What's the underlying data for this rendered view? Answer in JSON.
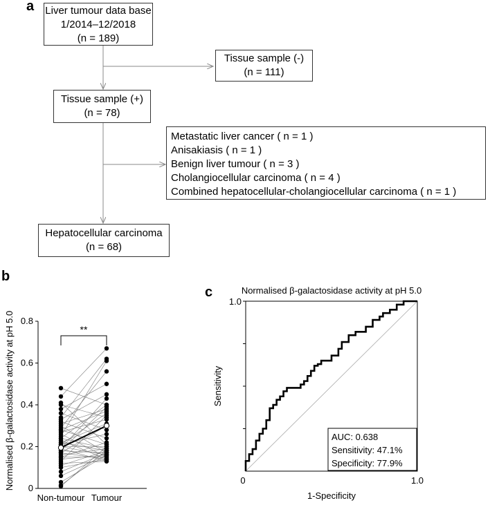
{
  "panel_a": {
    "letter": "a",
    "database_box": [
      "Liver tumour data base",
      "1/2014–12/2018",
      "(n = 189)"
    ],
    "tissue_negative_box": [
      "Tissue sample (-)",
      "(n = 111)"
    ],
    "tissue_positive_box": [
      "Tissue sample (+)",
      "(n = 78)"
    ],
    "excluded_box": [
      "Metastatic liver cancer ( n = 1 )",
      "Anisakiasis ( n = 1 )",
      "Benign liver tumour ( n = 3 )",
      "Cholangiocellular carcinoma ( n = 4 )",
      "Combined hepatocellular-cholangiocellular carcinoma ( n = 1 )"
    ],
    "hcc_box": [
      "Hepatocellular carcinoma",
      "(n = 68)"
    ],
    "colors": {
      "box_border": "#333333",
      "arrow": "#888888"
    }
  },
  "panel_b": {
    "letter": "b",
    "significance": "**",
    "chart_data": {
      "type": "paired-dot",
      "title": "",
      "xlabel": "",
      "ylabel": "Normalised β-galactosidase activity at pH 5.0",
      "categories": [
        "Non-tumour",
        "Tumour"
      ],
      "ylim": [
        0,
        0.8
      ],
      "yticks": [
        "0",
        "0.2",
        "0.4",
        "0.6",
        "0.8"
      ],
      "mean": [
        0.195,
        0.3
      ],
      "pairs": [
        [
          0.01,
          0.2
        ],
        [
          0.015,
          0.18
        ],
        [
          0.03,
          0.16
        ],
        [
          0.06,
          0.16
        ],
        [
          0.08,
          0.17
        ],
        [
          0.1,
          0.14
        ],
        [
          0.11,
          0.18
        ],
        [
          0.12,
          0.13
        ],
        [
          0.13,
          0.35
        ],
        [
          0.14,
          0.16
        ],
        [
          0.15,
          0.22
        ],
        [
          0.15,
          0.15
        ],
        [
          0.16,
          0.19
        ],
        [
          0.17,
          0.14
        ],
        [
          0.17,
          0.3
        ],
        [
          0.18,
          0.39
        ],
        [
          0.18,
          0.17
        ],
        [
          0.19,
          0.13
        ],
        [
          0.19,
          0.43
        ],
        [
          0.2,
          0.2
        ],
        [
          0.2,
          0.16
        ],
        [
          0.21,
          0.36
        ],
        [
          0.21,
          0.26
        ],
        [
          0.22,
          0.18
        ],
        [
          0.22,
          0.31
        ],
        [
          0.23,
          0.14
        ],
        [
          0.24,
          0.4
        ],
        [
          0.24,
          0.19
        ],
        [
          0.25,
          0.61
        ],
        [
          0.26,
          0.15
        ],
        [
          0.27,
          0.33
        ],
        [
          0.28,
          0.37
        ],
        [
          0.28,
          0.21
        ],
        [
          0.29,
          0.56
        ],
        [
          0.3,
          0.17
        ],
        [
          0.31,
          0.38
        ],
        [
          0.32,
          0.24
        ],
        [
          0.33,
          0.45
        ],
        [
          0.34,
          0.62
        ],
        [
          0.36,
          0.28
        ],
        [
          0.38,
          0.5
        ],
        [
          0.4,
          0.34
        ],
        [
          0.41,
          0.21
        ],
        [
          0.44,
          0.67
        ],
        [
          0.48,
          0.4
        ]
      ]
    }
  },
  "panel_c": {
    "letter": "c",
    "chart_data": {
      "type": "line",
      "title": "Normalised β-galactosidase activity at pH 5.0",
      "xlabel": "1-Specificity",
      "ylabel": "Sensitivity",
      "xlim": [
        0,
        1
      ],
      "ylim": [
        0,
        1
      ],
      "xticks": [
        "0",
        "1.0"
      ],
      "yticks": [
        "1.0"
      ],
      "diagonal_reference": true,
      "roc_points": [
        [
          0,
          0
        ],
        [
          0,
          0.06
        ],
        [
          0.02,
          0.06
        ],
        [
          0.02,
          0.1
        ],
        [
          0.04,
          0.1
        ],
        [
          0.04,
          0.13
        ],
        [
          0.06,
          0.13
        ],
        [
          0.06,
          0.18
        ],
        [
          0.08,
          0.18
        ],
        [
          0.08,
          0.22
        ],
        [
          0.1,
          0.22
        ],
        [
          0.1,
          0.25
        ],
        [
          0.12,
          0.25
        ],
        [
          0.12,
          0.3
        ],
        [
          0.14,
          0.3
        ],
        [
          0.14,
          0.37
        ],
        [
          0.16,
          0.37
        ],
        [
          0.16,
          0.39
        ],
        [
          0.18,
          0.39
        ],
        [
          0.18,
          0.42
        ],
        [
          0.2,
          0.42
        ],
        [
          0.2,
          0.44
        ],
        [
          0.22,
          0.44
        ],
        [
          0.22,
          0.47
        ],
        [
          0.24,
          0.47
        ],
        [
          0.24,
          0.49
        ],
        [
          0.32,
          0.49
        ],
        [
          0.32,
          0.51
        ],
        [
          0.34,
          0.51
        ],
        [
          0.34,
          0.53
        ],
        [
          0.36,
          0.53
        ],
        [
          0.36,
          0.56
        ],
        [
          0.38,
          0.56
        ],
        [
          0.38,
          0.59
        ],
        [
          0.4,
          0.59
        ],
        [
          0.4,
          0.62
        ],
        [
          0.42,
          0.62
        ],
        [
          0.42,
          0.63
        ],
        [
          0.44,
          0.63
        ],
        [
          0.44,
          0.65
        ],
        [
          0.5,
          0.65
        ],
        [
          0.5,
          0.68
        ],
        [
          0.54,
          0.68
        ],
        [
          0.54,
          0.72
        ],
        [
          0.56,
          0.72
        ],
        [
          0.56,
          0.76
        ],
        [
          0.6,
          0.76
        ],
        [
          0.6,
          0.8
        ],
        [
          0.64,
          0.8
        ],
        [
          0.64,
          0.82
        ],
        [
          0.7,
          0.82
        ],
        [
          0.7,
          0.85
        ],
        [
          0.74,
          0.85
        ],
        [
          0.74,
          0.89
        ],
        [
          0.78,
          0.89
        ],
        [
          0.78,
          0.91
        ],
        [
          0.8,
          0.91
        ],
        [
          0.8,
          0.93
        ],
        [
          0.84,
          0.93
        ],
        [
          0.84,
          0.95
        ],
        [
          0.88,
          0.95
        ],
        [
          0.88,
          0.98
        ],
        [
          0.92,
          0.98
        ],
        [
          0.92,
          1.0
        ],
        [
          1.0,
          1.0
        ]
      ],
      "stats": [
        "AUC: 0.638",
        "Sensitivity: 47.1%",
        "Specificity: 77.9%"
      ]
    }
  }
}
